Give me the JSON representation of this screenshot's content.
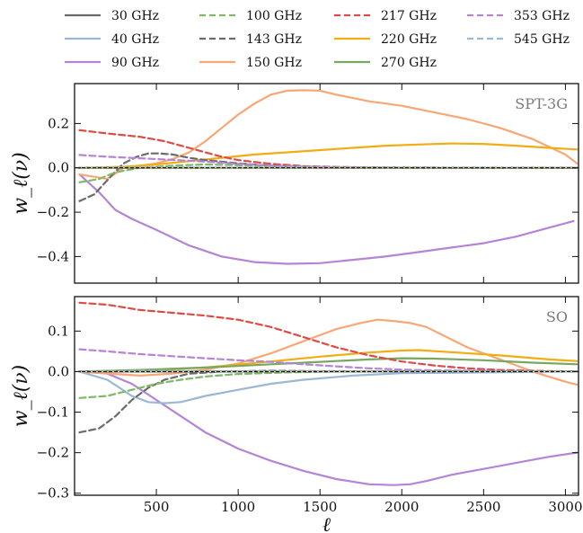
{
  "legend": {
    "entries": [
      {
        "label": "30 GHz",
        "color": "#6b6b6b",
        "dash": "solid"
      },
      {
        "label": "40 GHz",
        "color": "#9ab8d6",
        "dash": "solid"
      },
      {
        "label": "90 GHz",
        "color": "#b584d6",
        "dash": "solid"
      },
      {
        "label": "100 GHz",
        "color": "#7fb866",
        "dash": "dashed"
      },
      {
        "label": "143 GHz",
        "color": "#6b6b6b",
        "dash": "dashed"
      },
      {
        "label": "150 GHz",
        "color": "#f8a774",
        "dash": "solid"
      },
      {
        "label": "217 GHz",
        "color": "#dd4b45",
        "dash": "dashed"
      },
      {
        "label": "220 GHz",
        "color": "#f2ad14",
        "dash": "solid"
      },
      {
        "label": "270 GHz",
        "color": "#78a860",
        "dash": "solid"
      },
      {
        "label": "353 GHz",
        "color": "#b584d6",
        "dash": "dashed"
      },
      {
        "label": "545 GHz",
        "color": "#9ab8d6",
        "dash": "dashed"
      }
    ]
  },
  "chart_data": [
    {
      "type": "line",
      "panel_label": "SPT-3G",
      "xlabel": "",
      "ylabel": "w_ℓ(ν)",
      "xlim": [
        0,
        3080
      ],
      "ylim": [
        -0.52,
        0.38
      ],
      "xticks": [
        500,
        1000,
        1500,
        2000,
        2500,
        3000
      ],
      "yticks": [
        0.2,
        0.0,
        -0.2,
        -0.4
      ],
      "ytick_labels": [
        "0.2",
        "0.0",
        "−0.2",
        "−0.4"
      ],
      "series": [
        {
          "name": "90 GHz",
          "color": "#b584d6",
          "dash": "solid",
          "x": [
            30,
            150,
            250,
            350,
            500,
            700,
            900,
            1100,
            1300,
            1500,
            1700,
            1900,
            2100,
            2300,
            2500,
            2700,
            2900,
            3050
          ],
          "y": [
            -0.03,
            -0.11,
            -0.19,
            -0.23,
            -0.28,
            -0.35,
            -0.4,
            -0.425,
            -0.433,
            -0.43,
            -0.415,
            -0.4,
            -0.38,
            -0.36,
            -0.34,
            -0.31,
            -0.27,
            -0.24
          ]
        },
        {
          "name": "150 GHz",
          "color": "#f8a774",
          "dash": "solid",
          "x": [
            30,
            200,
            300,
            400,
            500,
            600,
            700,
            800,
            900,
            1000,
            1100,
            1200,
            1300,
            1400,
            1500,
            1600,
            1800,
            2000,
            2200,
            2400,
            2600,
            2800,
            3000,
            3070
          ],
          "y": [
            -0.03,
            -0.05,
            0.0,
            0.01,
            0.02,
            0.04,
            0.07,
            0.12,
            0.18,
            0.24,
            0.29,
            0.33,
            0.348,
            0.35,
            0.348,
            0.33,
            0.3,
            0.28,
            0.25,
            0.22,
            0.18,
            0.13,
            0.06,
            0.02
          ]
        },
        {
          "name": "220 GHz",
          "color": "#f2ad14",
          "dash": "solid",
          "x": [
            30,
            300,
            500,
            700,
            900,
            1100,
            1300,
            1500,
            1700,
            1900,
            2100,
            2300,
            2500,
            2700,
            2900,
            3070
          ],
          "y": [
            0.0,
            0.005,
            0.015,
            0.03,
            0.045,
            0.06,
            0.07,
            0.08,
            0.09,
            0.1,
            0.105,
            0.11,
            0.108,
            0.1,
            0.09,
            0.083
          ]
        },
        {
          "name": "217 GHz",
          "color": "#dd4b45",
          "dash": "dashed",
          "x": [
            30,
            200,
            400,
            550,
            700,
            800,
            900,
            1000,
            1200,
            1400,
            1600,
            1800,
            2000,
            3070
          ],
          "y": [
            0.17,
            0.155,
            0.14,
            0.12,
            0.09,
            0.07,
            0.05,
            0.035,
            0.018,
            0.008,
            0.004,
            0.002,
            0.001,
            0.0
          ]
        },
        {
          "name": "143 GHz",
          "color": "#6b6b6b",
          "dash": "dashed",
          "x": [
            30,
            120,
            220,
            300,
            380,
            450,
            520,
            600,
            700,
            800,
            1000,
            1200,
            1400,
            1600,
            3070
          ],
          "y": [
            -0.15,
            -0.12,
            -0.04,
            0.02,
            0.05,
            0.065,
            0.065,
            0.06,
            0.045,
            0.035,
            0.02,
            0.01,
            0.004,
            0.001,
            0.0
          ]
        },
        {
          "name": "100 GHz",
          "color": "#7fb866",
          "dash": "dashed",
          "x": [
            30,
            150,
            250,
            400,
            600,
            800,
            1000,
            1200,
            1400,
            1600,
            3070
          ],
          "y": [
            -0.065,
            -0.05,
            -0.02,
            0.0,
            0.01,
            0.015,
            0.012,
            0.008,
            0.004,
            0.002,
            0.0
          ]
        },
        {
          "name": "353 GHz",
          "color": "#b584d6",
          "dash": "dashed",
          "x": [
            30,
            200,
            400,
            600,
            800,
            1000,
            1200,
            1400,
            1600,
            1800,
            2000,
            3070
          ],
          "y": [
            0.058,
            0.05,
            0.043,
            0.036,
            0.028,
            0.018,
            0.01,
            0.006,
            0.003,
            0.002,
            0.001,
            0.0
          ]
        },
        {
          "name": "30 GHz",
          "color": "#6b6b6b",
          "dash": "solid",
          "x": [
            30,
            3070
          ],
          "y": [
            0.0,
            0.0
          ]
        },
        {
          "name": "545 GHz",
          "color": "#9ab8d6",
          "dash": "dashed",
          "x": [
            30,
            300,
            600,
            1000,
            3070
          ],
          "y": [
            0.0,
            0.002,
            0.002,
            0.001,
            0.0
          ]
        }
      ]
    },
    {
      "type": "line",
      "panel_label": "SO",
      "xlabel": "ℓ",
      "ylabel": "w_ℓ(ν)",
      "xlim": [
        0,
        3080
      ],
      "ylim": [
        -0.305,
        0.185
      ],
      "xticks": [
        500,
        1000,
        1500,
        2000,
        2500,
        3000
      ],
      "yticks": [
        0.1,
        0.0,
        -0.1,
        -0.2,
        -0.3
      ],
      "ytick_labels": [
        "0.1",
        "0.0",
        "−0.1",
        "−0.2",
        "−0.3"
      ],
      "series": [
        {
          "name": "90 GHz",
          "color": "#b584d6",
          "dash": "solid",
          "x": [
            30,
            200,
            350,
            500,
            650,
            800,
            1000,
            1200,
            1400,
            1600,
            1800,
            1950,
            2050,
            2150,
            2300,
            2500,
            2700,
            2900,
            3070
          ],
          "y": [
            0.0,
            -0.005,
            -0.03,
            -0.07,
            -0.11,
            -0.15,
            -0.19,
            -0.22,
            -0.245,
            -0.265,
            -0.278,
            -0.28,
            -0.278,
            -0.27,
            -0.255,
            -0.24,
            -0.225,
            -0.21,
            -0.2
          ]
        },
        {
          "name": "40 GHz",
          "color": "#9ab8d6",
          "dash": "solid",
          "x": [
            30,
            200,
            350,
            450,
            550,
            650,
            800,
            1000,
            1200,
            1400,
            1700,
            2000,
            3070
          ],
          "y": [
            0.0,
            -0.02,
            -0.06,
            -0.075,
            -0.078,
            -0.075,
            -0.06,
            -0.045,
            -0.03,
            -0.02,
            -0.01,
            -0.004,
            0.0
          ]
        },
        {
          "name": "150 GHz",
          "color": "#f8a774",
          "dash": "solid",
          "x": [
            30,
            400,
            600,
            800,
            1000,
            1200,
            1400,
            1600,
            1750,
            1850,
            1950,
            2050,
            2150,
            2250,
            2400,
            2600,
            2800,
            3000,
            3070
          ],
          "y": [
            0.0,
            -0.01,
            -0.005,
            0.005,
            0.02,
            0.045,
            0.075,
            0.105,
            0.12,
            0.128,
            0.125,
            0.12,
            0.11,
            0.09,
            0.06,
            0.03,
            0.0,
            -0.025,
            -0.032
          ]
        },
        {
          "name": "220 GHz",
          "color": "#f2ad14",
          "dash": "solid",
          "x": [
            30,
            400,
            800,
            1200,
            1500,
            1800,
            2000,
            2100,
            2300,
            2600,
            2900,
            3070
          ],
          "y": [
            0.0,
            0.002,
            0.01,
            0.025,
            0.037,
            0.047,
            0.052,
            0.053,
            0.048,
            0.04,
            0.03,
            0.026
          ]
        },
        {
          "name": "270 GHz",
          "color": "#78a860",
          "dash": "solid",
          "x": [
            30,
            400,
            800,
            1200,
            1500,
            1800,
            2000,
            2200,
            2500,
            2800,
            3070
          ],
          "y": [
            0.0,
            0.004,
            0.01,
            0.018,
            0.024,
            0.03,
            0.033,
            0.032,
            0.028,
            0.022,
            0.018
          ]
        },
        {
          "name": "217 GHz",
          "color": "#dd4b45",
          "dash": "dashed",
          "x": [
            30,
            200,
            400,
            600,
            800,
            1000,
            1200,
            1400,
            1600,
            1800,
            2000,
            2200,
            2400,
            2600,
            2800,
            3070
          ],
          "y": [
            0.17,
            0.165,
            0.152,
            0.145,
            0.138,
            0.128,
            0.11,
            0.085,
            0.06,
            0.04,
            0.025,
            0.015,
            0.008,
            0.004,
            0.002,
            0.0
          ]
        },
        {
          "name": "143 GHz",
          "color": "#6b6b6b",
          "dash": "dashed",
          "x": [
            30,
            150,
            250,
            350,
            450,
            550,
            700,
            900,
            1200,
            1500,
            3070
          ],
          "y": [
            -0.15,
            -0.14,
            -0.11,
            -0.07,
            -0.04,
            -0.02,
            -0.005,
            0.0,
            0.002,
            0.001,
            0.0
          ]
        },
        {
          "name": "100 GHz",
          "color": "#7fb866",
          "dash": "dashed",
          "x": [
            30,
            200,
            350,
            500,
            650,
            800,
            1000,
            1300,
            1600,
            2000,
            3070
          ],
          "y": [
            -0.065,
            -0.06,
            -0.045,
            -0.03,
            -0.02,
            -0.012,
            -0.006,
            -0.002,
            0.0,
            0.0,
            0.0
          ]
        },
        {
          "name": "353 GHz",
          "color": "#b584d6",
          "dash": "dashed",
          "x": [
            30,
            200,
            400,
            600,
            800,
            1000,
            1200,
            1400,
            1600,
            1800,
            2000,
            2200,
            3070
          ],
          "y": [
            0.055,
            0.05,
            0.043,
            0.038,
            0.033,
            0.028,
            0.024,
            0.018,
            0.013,
            0.008,
            0.005,
            0.003,
            0.0
          ]
        },
        {
          "name": "30 GHz",
          "color": "#6b6b6b",
          "dash": "solid",
          "x": [
            30,
            3070
          ],
          "y": [
            0.0,
            0.0
          ]
        },
        {
          "name": "545 GHz",
          "color": "#9ab8d6",
          "dash": "dashed",
          "x": [
            30,
            500,
            1000,
            3070
          ],
          "y": [
            0.0,
            0.002,
            0.001,
            0.0
          ]
        }
      ]
    }
  ]
}
